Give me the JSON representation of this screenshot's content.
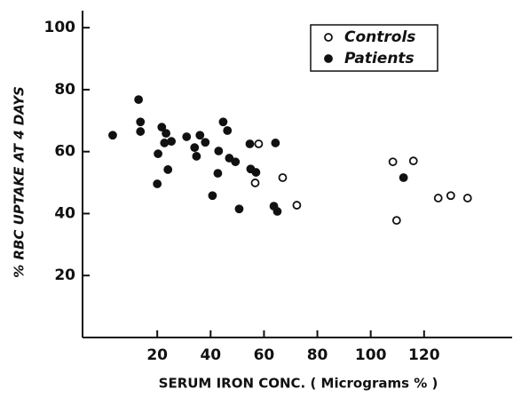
{
  "chart_data": {
    "type": "scatter",
    "xlabel": "SERUM IRON CONC. ( Micrograms % )",
    "ylabel": "% RBC UPTAKE AT 4 DAYS",
    "xlim": [
      -8,
      153
    ],
    "ylim": [
      0,
      105.5
    ],
    "xticks": [
      20,
      40,
      60,
      80,
      100,
      120
    ],
    "yticks": [
      20,
      40,
      60,
      80,
      100
    ],
    "legend": "upper right",
    "series": [
      {
        "name": "Controls",
        "color": "#111111",
        "marker": "open",
        "x": [
          56.7,
          58,
          67,
          72.3,
          108.3,
          109.7,
          116,
          125.3,
          130,
          136.3
        ],
        "values": [
          49.9,
          62.5,
          51.6,
          42.7,
          56.7,
          37.8,
          57,
          45,
          45.8,
          45
        ]
      },
      {
        "name": "Patients",
        "color": "#111111",
        "marker": "filled",
        "x": [
          3.3,
          13,
          13.7,
          13.7,
          20,
          20.3,
          21.7,
          22.7,
          23.3,
          24,
          25.3,
          31,
          34,
          34.7,
          36,
          38,
          40.7,
          42.7,
          43,
          44.7,
          46.3,
          47,
          49.3,
          50.7,
          54.7,
          55,
          57,
          63.7,
          64.3,
          65,
          112.3
        ],
        "values": [
          65.3,
          76.8,
          69.6,
          66.5,
          49.6,
          59.3,
          67.9,
          62.8,
          65.9,
          54.2,
          63.3,
          64.8,
          61.3,
          58.5,
          65.3,
          63,
          45.8,
          53,
          60.2,
          69.6,
          66.8,
          57.9,
          56.7,
          41.5,
          62.5,
          54.4,
          53.3,
          42.4,
          62.8,
          40.7,
          51.6
        ]
      }
    ]
  }
}
